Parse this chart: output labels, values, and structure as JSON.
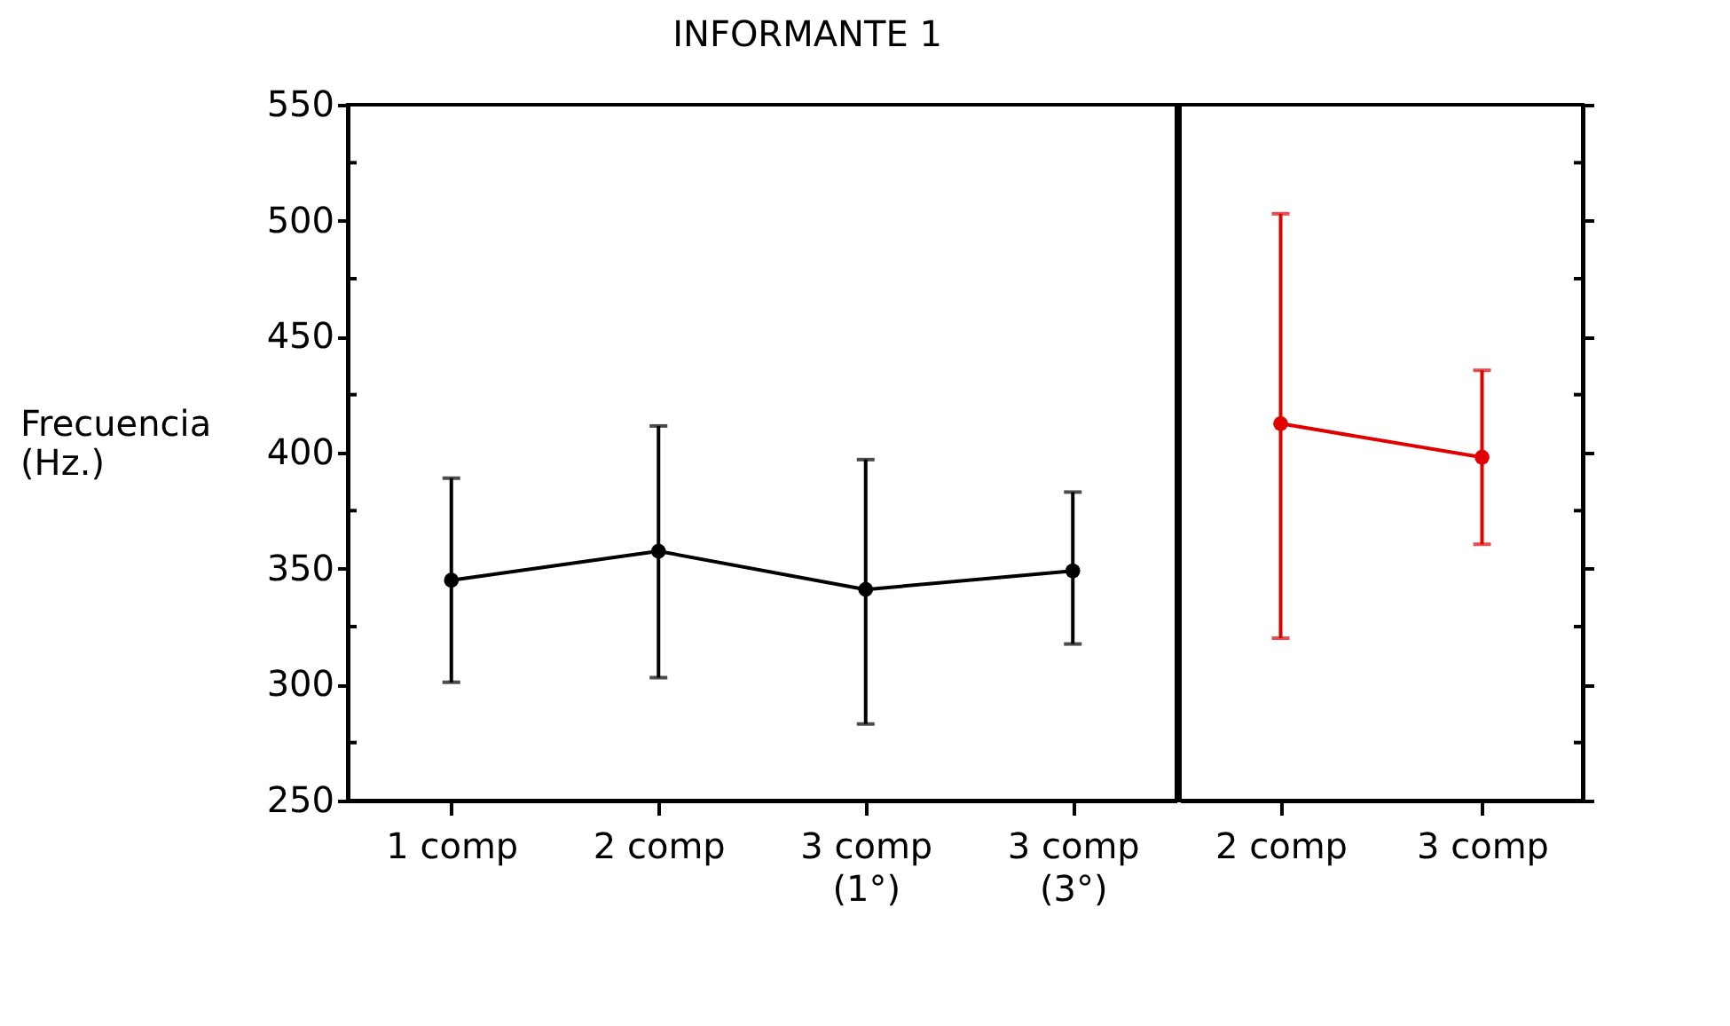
{
  "chart_data": [
    {
      "type": "line",
      "title": "INFORMANTE 1",
      "ylabel": "Frecuencia (Hz.)",
      "categories": [
        "1 comp",
        "2 comp",
        "3 comp (1°)",
        "3 comp (3°)"
      ],
      "series": [
        {
          "color": "#000000",
          "values": [
            345,
            357.5,
            341,
            349
          ],
          "errors": [
            [
              301,
              389
            ],
            [
              303,
              411.5
            ],
            [
              283,
              397
            ],
            [
              317.5,
              383
            ]
          ]
        }
      ],
      "ylim": [
        250,
        550
      ],
      "yticks": [
        250,
        {
          "value": 275,
          "label": null
        },
        300,
        {
          "value": 325,
          "label": null
        },
        350,
        {
          "value": 375,
          "label": null
        },
        400,
        {
          "value": 425,
          "label": null
        },
        450,
        {
          "value": 475,
          "label": null
        },
        500,
        {
          "value": 525,
          "label": null
        },
        550
      ],
      "marker": "circle",
      "grid": false
    },
    {
      "type": "line",
      "categories": [
        "2 comp",
        "3 comp"
      ],
      "series": [
        {
          "color": "#e00000",
          "values": [
            412.5,
            398
          ],
          "errors": [
            [
              320,
              503
            ],
            [
              360.5,
              435.5
            ]
          ]
        }
      ],
      "ylim": [
        250,
        550
      ],
      "yticks": [
        250,
        {
          "value": 275,
          "label": null
        },
        300,
        {
          "value": 325,
          "label": null
        },
        350,
        {
          "value": 375,
          "label": null
        },
        400,
        {
          "value": 425,
          "label": null
        },
        450,
        {
          "value": 475,
          "label": null
        },
        500,
        {
          "value": 525,
          "label": null
        },
        550
      ],
      "tick_labels": "x",
      "marker": "circle",
      "grid": false
    }
  ]
}
